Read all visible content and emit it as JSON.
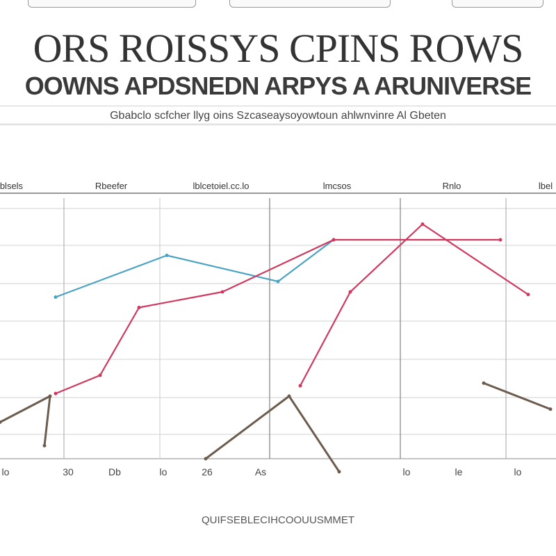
{
  "header": {
    "title": "ORS ROISSYS CPINS ROWS",
    "subtitle": "OOWNS APDSNEDN ARPYS A ARUNIVERSE",
    "caption": "Gbabclo scfcher llyg oins Szcaseaysoyowtoun ahlwnvinre Al Gbeten",
    "footer": "QUIFSEBLECIHCOOUUSMMET"
  },
  "chart_data": {
    "type": "line",
    "title": "ORS ROISSYS CPINS ROWS",
    "subtitle": "OOWNS APDSNEDN ARPYS A ARUNIVERSE",
    "column_headers": [
      "lblsels",
      "Rbeefer",
      "lblcetoiel.cc.lo",
      "lmcsos",
      "Rnlo",
      "lbel"
    ],
    "x_tick_labels": [
      "lo",
      "30",
      "Db",
      "lo",
      "26",
      "As",
      "lo",
      "le",
      "lo"
    ],
    "series": [
      {
        "color": "#4aa3c2",
        "values": [
          [
            1,
            62
          ],
          [
            3,
            78
          ],
          [
            5,
            68
          ],
          [
            6,
            84
          ]
        ]
      },
      {
        "color": "#d0385e",
        "values": [
          [
            1,
            25
          ],
          [
            1.8,
            32
          ],
          [
            2.5,
            58
          ],
          [
            4,
            64
          ],
          [
            6,
            84
          ],
          [
            9,
            84
          ]
        ]
      },
      {
        "color": "#d0385e",
        "values": [
          [
            5.4,
            28
          ],
          [
            6.3,
            64
          ],
          [
            7.6,
            90
          ],
          [
            9.5,
            63
          ]
        ]
      },
      {
        "color": "#6b5c4e",
        "values": [
          [
            0,
            14
          ],
          [
            0.9,
            24
          ],
          [
            0.8,
            5
          ]
        ]
      },
      {
        "color": "#6b5c4e",
        "values": [
          [
            3.7,
            0
          ],
          [
            5.2,
            24
          ],
          [
            6.1,
            -5
          ]
        ]
      },
      {
        "color": "#6b5c4e",
        "values": [
          [
            8.7,
            29
          ],
          [
            9.9,
            19
          ]
        ]
      }
    ],
    "xlim": [
      0,
      10
    ],
    "ylim": [
      0,
      100
    ],
    "grid": true,
    "legend": "none"
  }
}
